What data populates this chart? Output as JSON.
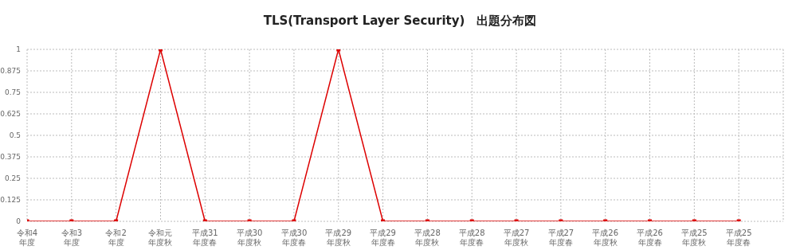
{
  "chart_data": {
    "type": "line",
    "title": "TLS(Transport Layer Security)　出題分布図",
    "categories": [
      "令和4年度",
      "令和3年度",
      "令和2年度",
      "令和元年度秋",
      "平成31年度春",
      "平成30年度秋",
      "平成30年度春",
      "平成29年度秋",
      "平成29年度春",
      "平成28年度秋",
      "平成28年度春",
      "平成27年度秋",
      "平成27年度春",
      "平成26年度秋",
      "平成26年度春",
      "平成25年度秋",
      "平成25年度春",
      null
    ],
    "values": [
      0,
      0,
      0,
      1,
      0,
      0,
      0,
      1,
      0,
      0,
      0,
      0,
      0,
      0,
      0,
      0,
      0,
      null
    ],
    "color": "#dd0000",
    "ylim": [
      0,
      1
    ],
    "yticks": [
      0,
      0.125,
      0.25,
      0.375,
      0.5,
      0.625,
      0.75,
      0.875,
      1
    ],
    "grid": true,
    "marker": "square",
    "line_style": "solid"
  }
}
